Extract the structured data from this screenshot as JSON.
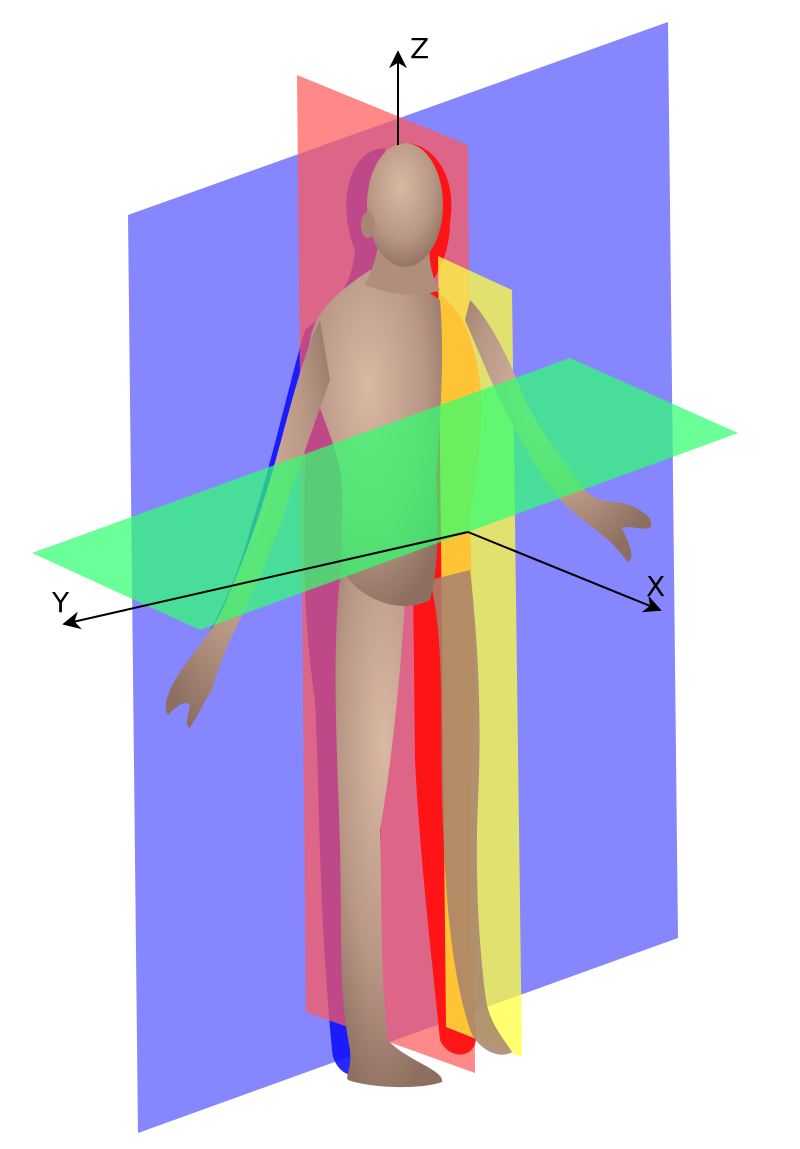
{
  "axes": {
    "z_label": "Z",
    "y_label": "Y",
    "x_label": "X"
  },
  "colors": {
    "coronal_plane": "#6b6bff",
    "sagittal_plane": "#ff5a5a",
    "parasagittal_plane": "#ffff40",
    "transverse_plane": "#30ff70",
    "body_skin": "#bb9986",
    "body_shadow_blue": "#1010ff",
    "body_shadow_red": "#ff1010",
    "axis_stroke": "#000000"
  },
  "figure": {
    "subject": "human-body",
    "pose": "standing-arms-slightly-raised"
  }
}
